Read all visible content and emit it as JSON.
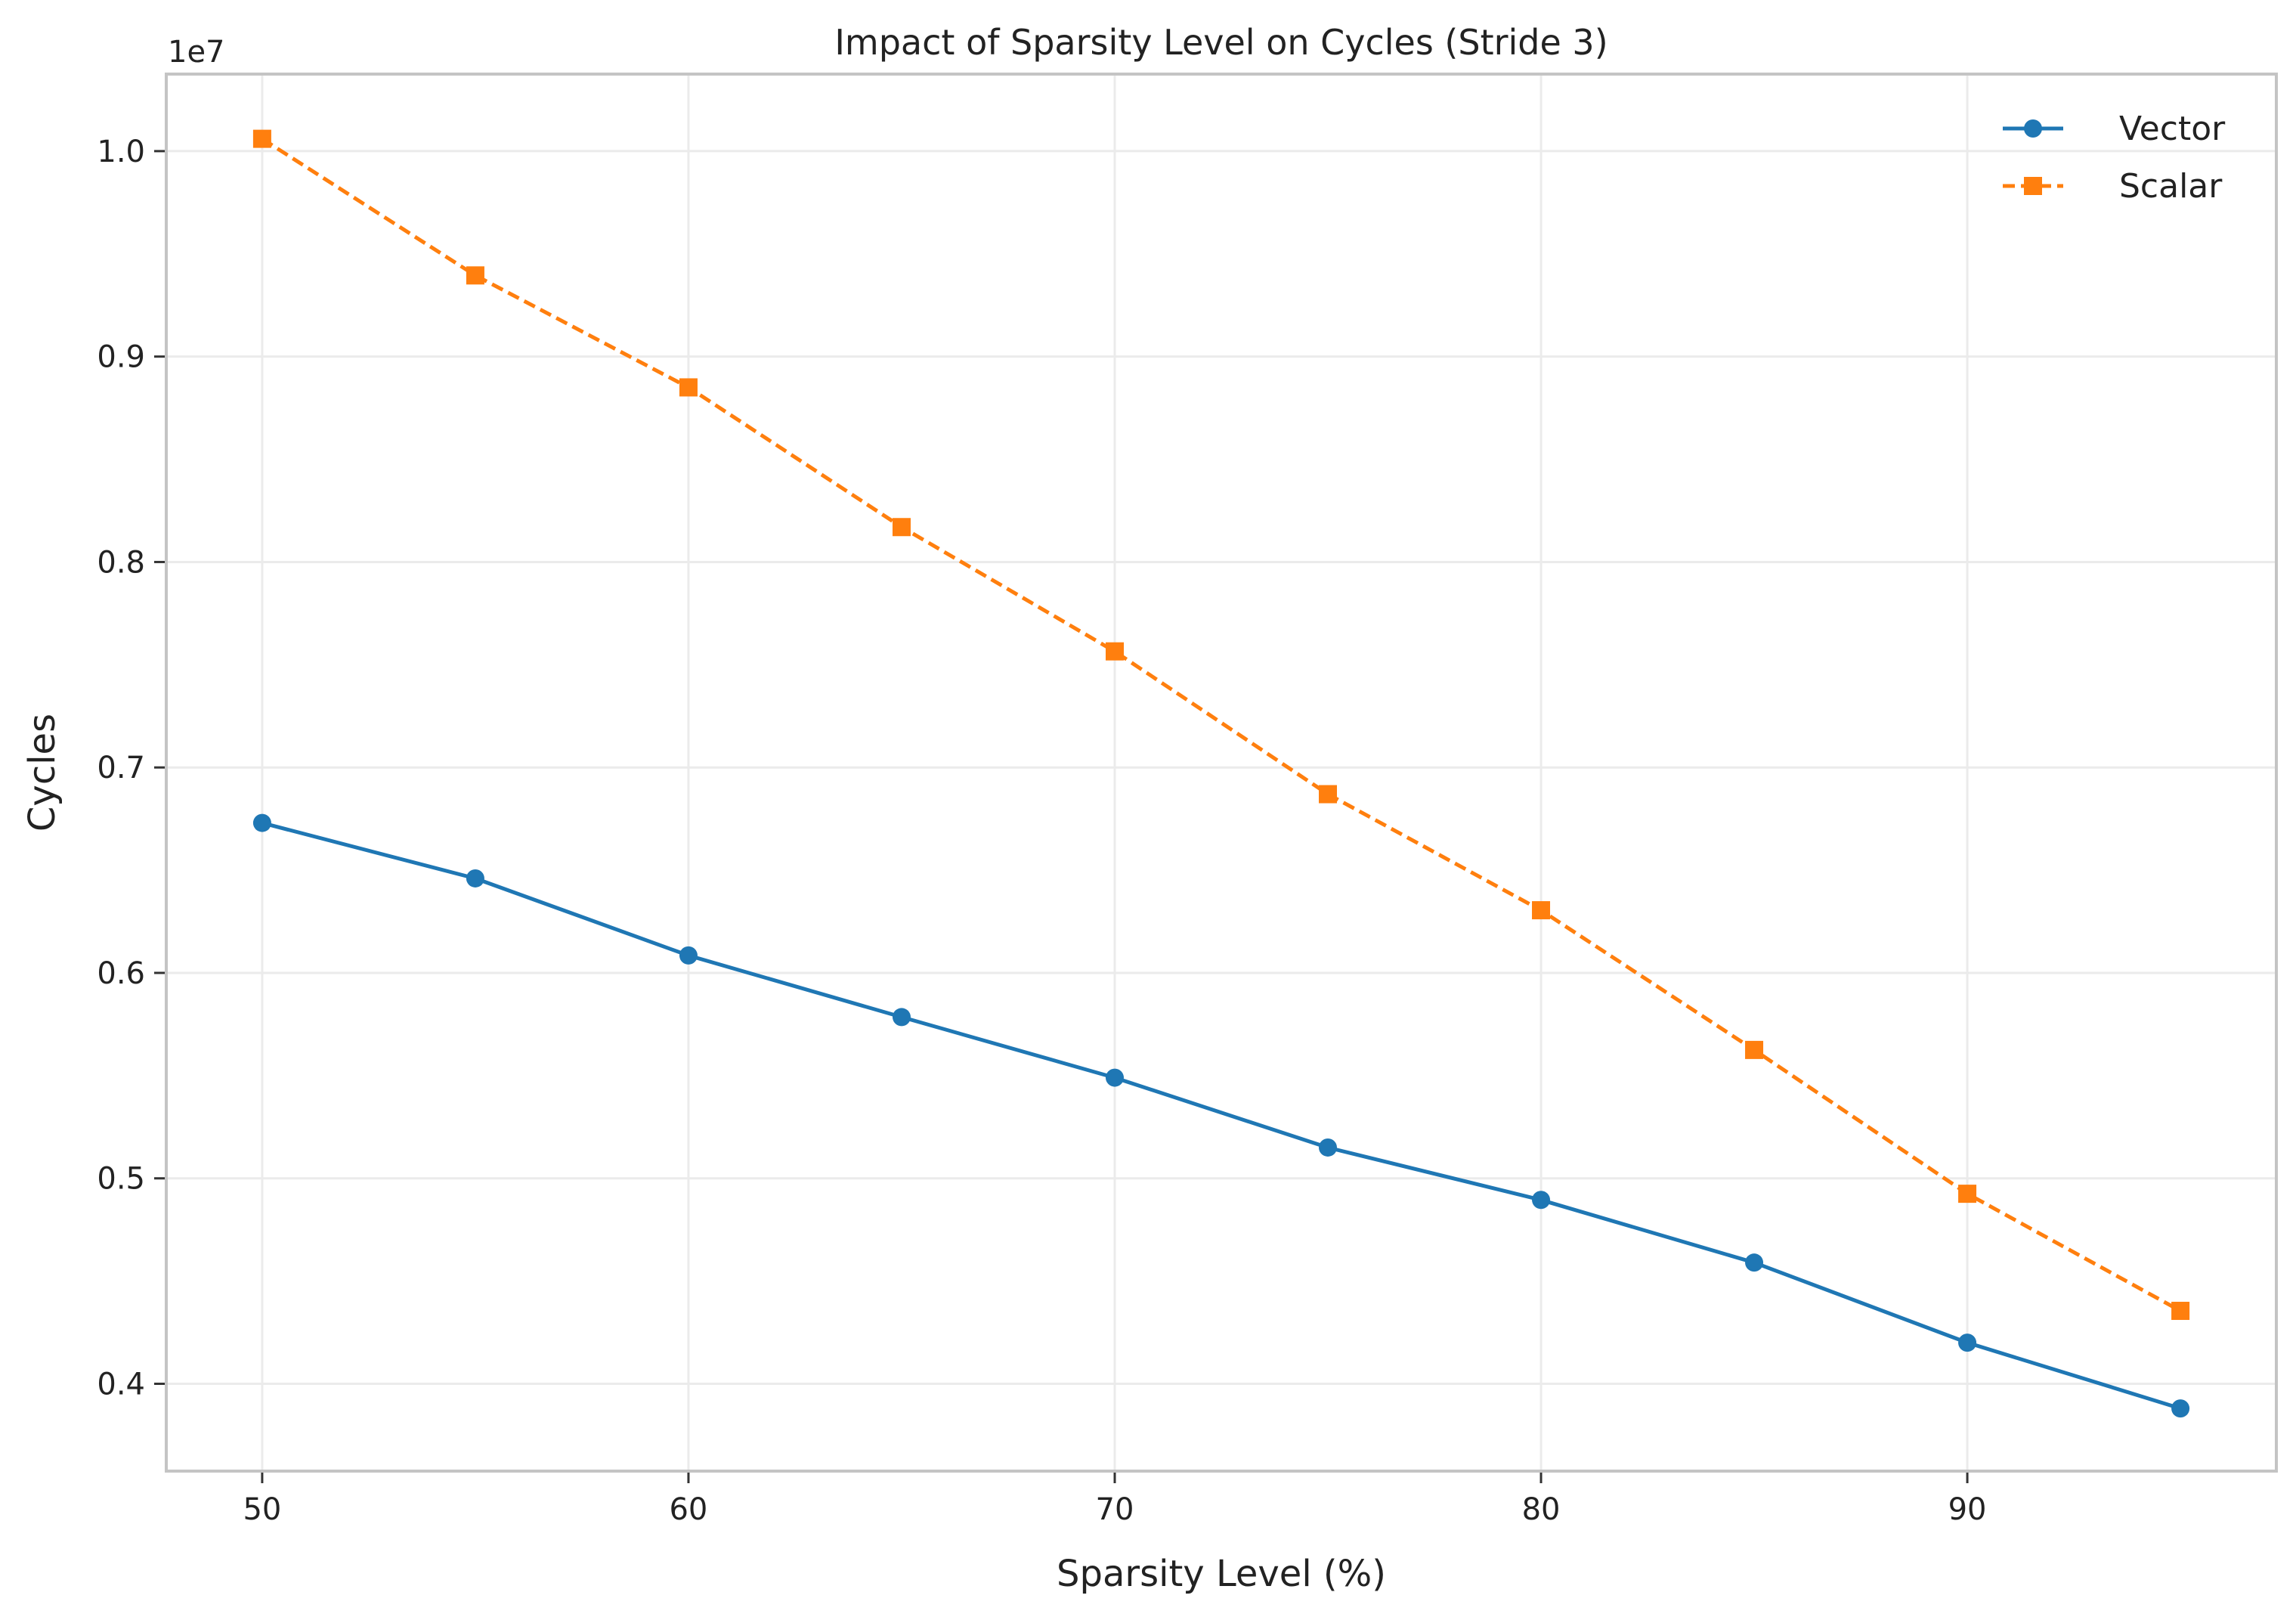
{
  "chart_data": {
    "type": "line",
    "title": "Impact of Sparsity Level on Cycles (Stride 3)",
    "xlabel": "Sparsity Level (%)",
    "ylabel": "Cycles",
    "y_multiplier": "1e7",
    "x": [
      50,
      55,
      60,
      65,
      70,
      75,
      80,
      85,
      90,
      95
    ],
    "xlim": [
      47.75,
      97.25
    ],
    "ylim": [
      3575000,
      10375000
    ],
    "xticks": [
      50,
      60,
      70,
      80,
      90
    ],
    "xtick_labels": [
      "50",
      "60",
      "70",
      "80",
      "90"
    ],
    "yticks": [
      4000000,
      5000000,
      6000000,
      7000000,
      8000000,
      9000000,
      10000000
    ],
    "ytick_labels": [
      "0.4",
      "0.5",
      "0.6",
      "0.7",
      "0.8",
      "0.9",
      "1.0"
    ],
    "grid": true,
    "legend_position": "top-right",
    "series": [
      {
        "name": "Vector",
        "values": [
          6730000,
          6460000,
          6085000,
          5785000,
          5490000,
          5150000,
          4895000,
          4590000,
          4200000,
          3880000
        ],
        "color": "#1f77b4",
        "line_style": "solid",
        "marker": "circle"
      },
      {
        "name": "Scalar",
        "values": [
          10060000,
          9395000,
          8850000,
          8170000,
          7565000,
          6870000,
          6305000,
          5625000,
          4925000,
          4355000
        ],
        "color": "#ff7f0e",
        "line_style": "dashed",
        "marker": "square"
      }
    ]
  }
}
